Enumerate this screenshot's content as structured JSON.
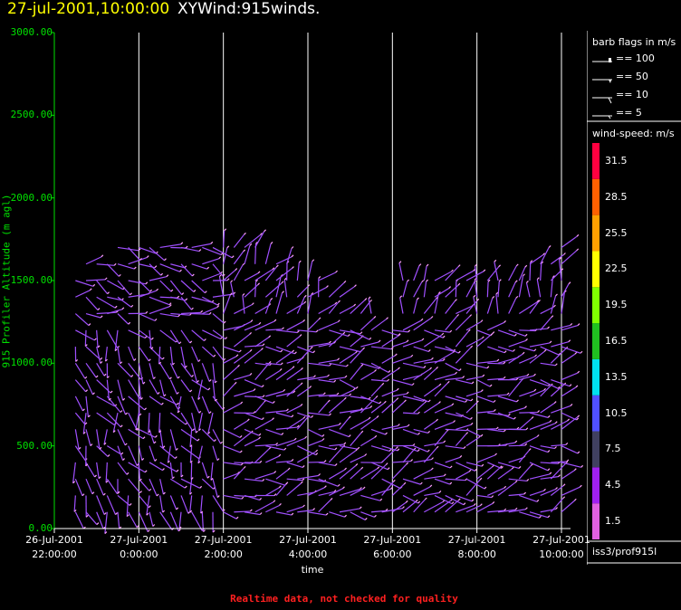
{
  "header": {
    "datetime": "27-jul-2001,10:00:00",
    "plot_name": "XYWind:915winds."
  },
  "chart_data": {
    "type": "wind-barb",
    "ylabel": "915 Profiler Altitude (m agl)",
    "xlabel": "time",
    "ylim": [
      0,
      3000
    ],
    "yticks": [
      "0.00",
      "500.00",
      "1000.00",
      "1500.00",
      "2000.00",
      "2500.00",
      "3000.00"
    ],
    "xticks": [
      {
        "date": "26-Jul-2001",
        "time": "22:00:00"
      },
      {
        "date": "27-Jul-2001",
        "time": "0:00:00"
      },
      {
        "date": "27-Jul-2001",
        "time": "2:00:00"
      },
      {
        "date": "27-Jul-2001",
        "time": "4:00:00"
      },
      {
        "date": "27-Jul-2001",
        "time": "6:00:00"
      },
      {
        "date": "27-Jul-2001",
        "time": "8:00:00"
      },
      {
        "date": "27-Jul-2001",
        "time": "10:00:00"
      }
    ],
    "xlim_hours": [
      0,
      12
    ],
    "grid_vertical": true,
    "profiles_per_hour": 4,
    "altitudes_m": [
      100,
      200,
      300,
      400,
      500,
      600,
      700,
      800,
      900,
      1000,
      1100,
      1200,
      1300,
      1400,
      1500,
      1600,
      1700
    ],
    "barb_color": "#a050ff",
    "barb_tip_color": "#ffa0ff"
  },
  "legend": {
    "barb_title": "barb flags in m/s",
    "barb_flags": [
      "== 100",
      "== 50",
      "== 10",
      "== 5"
    ],
    "speed_title": "wind-speed: m/s",
    "speed_colors": [
      "#e060e0",
      "#a020f0",
      "#404060",
      "#5050ff",
      "#00e0f0",
      "#20c020",
      "#80ff00",
      "#ffff00",
      "#ffa000",
      "#ff6000",
      "#ff0040"
    ],
    "speed_labels": [
      "1.5",
      "4.5",
      "7.5",
      "10.5",
      "13.5",
      "16.5",
      "19.5",
      "22.5",
      "25.5",
      "28.5",
      "31.5"
    ],
    "station": "iss3/prof915l"
  },
  "footer": "Realtime data, not checked for quality"
}
